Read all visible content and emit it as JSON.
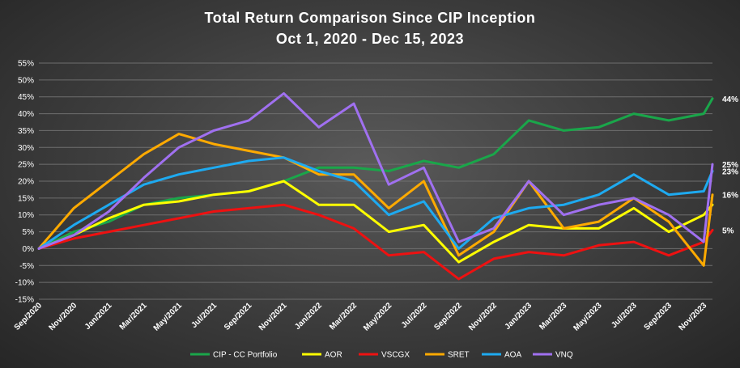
{
  "chart_data": {
    "type": "line",
    "title": "Total Return Comparison Since CIP Inception",
    "subtitle": "Oct 1, 2020 - Dec 15, 2023",
    "ylim": [
      -0.15,
      0.55
    ],
    "y_ticks": [
      "-15%",
      "-10%",
      "-5%",
      "0%",
      "5%",
      "10%",
      "15%",
      "20%",
      "25%",
      "30%",
      "35%",
      "40%",
      "45%",
      "50%",
      "55%"
    ],
    "x_ticks": [
      "Sep/2020",
      "Nov/2020",
      "Jan/2021",
      "Mar/2021",
      "May/2021",
      "Jul/2021",
      "Sep/2021",
      "Nov/2021",
      "Jan/2022",
      "Mar/2022",
      "May/2022",
      "Jul/2022",
      "Sep/2022",
      "Nov/2022",
      "Jan/2023",
      "Mar/2023",
      "May/2023",
      "Jul/2023",
      "Sep/2023",
      "Nov/2023"
    ],
    "x": [
      0.0,
      2,
      4,
      6,
      8,
      10,
      12,
      14,
      16,
      18,
      20,
      22,
      24,
      26,
      28,
      30,
      32,
      34,
      36,
      38,
      38.5
    ],
    "grid": true,
    "legend_position": "bottom",
    "series": [
      {
        "name": "CIP - CC Portfolio",
        "color": "#1aa64a",
        "end_label": "44%",
        "values": [
          0.0,
          0.05,
          0.08,
          0.13,
          0.15,
          0.16,
          0.17,
          0.2,
          0.24,
          0.24,
          0.23,
          0.26,
          0.24,
          0.28,
          0.38,
          0.35,
          0.36,
          0.4,
          0.38,
          0.4,
          0.445
        ]
      },
      {
        "name": "AOR",
        "color": "#ffff00",
        "end_label": "",
        "values": [
          0.0,
          0.04,
          0.09,
          0.13,
          0.14,
          0.16,
          0.17,
          0.2,
          0.13,
          0.13,
          0.05,
          0.07,
          -0.04,
          0.02,
          0.07,
          0.06,
          0.06,
          0.12,
          0.05,
          0.1,
          0.13
        ]
      },
      {
        "name": "VSCGX",
        "color": "#ee1111",
        "end_label": "5%",
        "values": [
          0.0,
          0.03,
          0.05,
          0.07,
          0.09,
          0.11,
          0.12,
          0.13,
          0.1,
          0.06,
          -0.02,
          -0.01,
          -0.09,
          -0.03,
          -0.01,
          -0.02,
          0.01,
          0.02,
          -0.02,
          0.02,
          0.055
        ]
      },
      {
        "name": "SRET",
        "color": "#ffaa00",
        "end_label": "16%",
        "values": [
          0.0,
          0.12,
          0.2,
          0.28,
          0.34,
          0.31,
          0.29,
          0.27,
          0.22,
          0.22,
          0.12,
          0.2,
          -0.02,
          0.05,
          0.2,
          0.06,
          0.08,
          0.15,
          0.08,
          -0.05,
          0.16
        ]
      },
      {
        "name": "AOA",
        "color": "#1eaaf0",
        "end_label": "23%",
        "values": [
          0.0,
          0.07,
          0.13,
          0.19,
          0.22,
          0.24,
          0.26,
          0.27,
          0.23,
          0.2,
          0.1,
          0.14,
          0.0,
          0.09,
          0.12,
          0.13,
          0.16,
          0.22,
          0.16,
          0.17,
          0.23
        ]
      },
      {
        "name": "VNQ",
        "color": "#a070f0",
        "end_label": "25%",
        "values": [
          0.0,
          0.04,
          0.11,
          0.21,
          0.3,
          0.35,
          0.38,
          0.46,
          0.36,
          0.43,
          0.19,
          0.24,
          0.02,
          0.06,
          0.2,
          0.1,
          0.13,
          0.15,
          0.1,
          0.02,
          0.25
        ]
      }
    ]
  }
}
